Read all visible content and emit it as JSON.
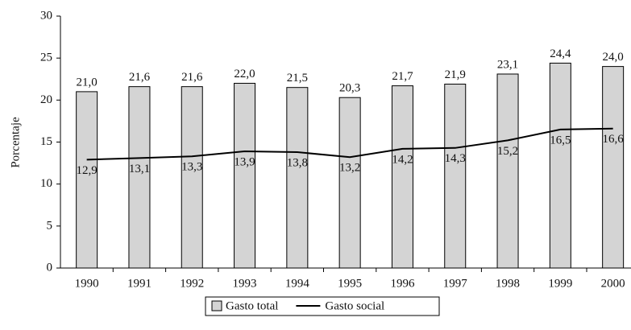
{
  "chart_data": {
    "type": "bar",
    "y_label": "Porcentaje",
    "categories": [
      "1990",
      "1991",
      "1992",
      "1993",
      "1994",
      "1995",
      "1996",
      "1997",
      "1998",
      "1999",
      "2000"
    ],
    "series": [
      {
        "name": "Gasto total",
        "kind": "bar",
        "color": "#d4d4d4",
        "values": [
          21.0,
          21.6,
          21.6,
          22.0,
          21.5,
          20.3,
          21.7,
          21.9,
          23.1,
          24.4,
          24.0
        ],
        "value_labels": [
          "21,0",
          "21,6",
          "21,6",
          "22,0",
          "21,5",
          "20,3",
          "21,7",
          "21,9",
          "23,1",
          "24,4",
          "24,0"
        ]
      },
      {
        "name": "Gasto social",
        "kind": "line",
        "color": "#000000",
        "values": [
          12.9,
          13.1,
          13.3,
          13.9,
          13.8,
          13.2,
          14.2,
          14.3,
          15.2,
          16.5,
          16.6
        ],
        "value_labels": [
          "12,9",
          "13,1",
          "13,3",
          "13,9",
          "13,8",
          "13,2",
          "14,2",
          "14,3",
          "15,2",
          "16,5",
          "16,6"
        ]
      }
    ],
    "ylim": [
      0,
      30
    ],
    "yticks": [
      0,
      5,
      10,
      15,
      20,
      25,
      30
    ],
    "grid": false
  }
}
